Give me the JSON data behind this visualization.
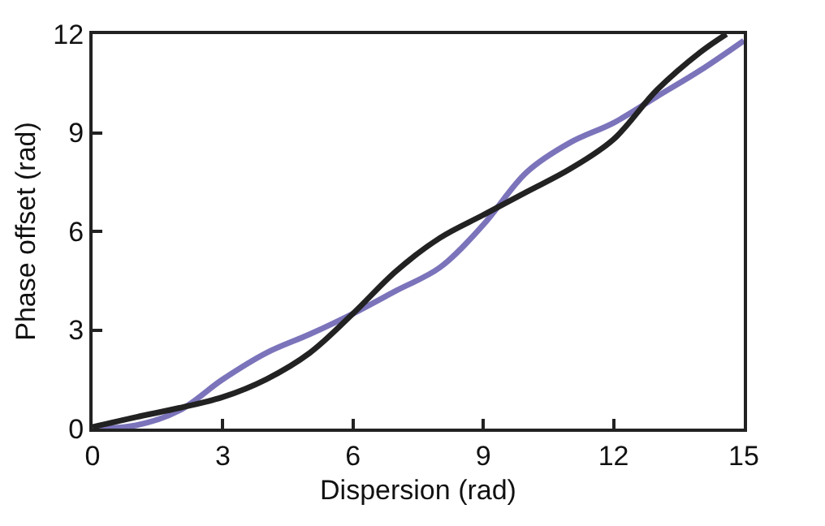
{
  "chart_data": {
    "type": "line",
    "xlabel": "Dispersion (rad)",
    "ylabel": "Phase offset (rad)",
    "xlim": [
      0,
      15
    ],
    "ylim": [
      0,
      12
    ],
    "xticks": [
      0,
      3,
      6,
      9,
      12,
      15
    ],
    "yticks": [
      0,
      3,
      6,
      9,
      12
    ],
    "grid": false,
    "marker": "none",
    "line_style": "solid",
    "series": [
      {
        "color": "#7b74bb",
        "x": [
          0,
          1,
          2,
          3,
          4,
          5,
          6,
          7,
          8,
          9,
          10,
          11,
          12,
          13,
          14,
          15
        ],
        "values": [
          0,
          0.1,
          0.55,
          1.5,
          2.3,
          2.87,
          3.5,
          4.2,
          4.9,
          6.2,
          7.8,
          8.7,
          9.3,
          10.1,
          10.9,
          11.8
        ]
      },
      {
        "color": "#222222",
        "x": [
          0,
          1,
          2,
          3,
          4,
          5,
          6,
          7,
          8,
          9,
          10,
          11,
          12,
          13,
          14,
          14.6
        ],
        "values": [
          0.05,
          0.35,
          0.63,
          0.96,
          1.5,
          2.3,
          3.5,
          4.8,
          5.8,
          6.5,
          7.2,
          7.9,
          8.8,
          10.3,
          11.45,
          12
        ]
      }
    ]
  }
}
